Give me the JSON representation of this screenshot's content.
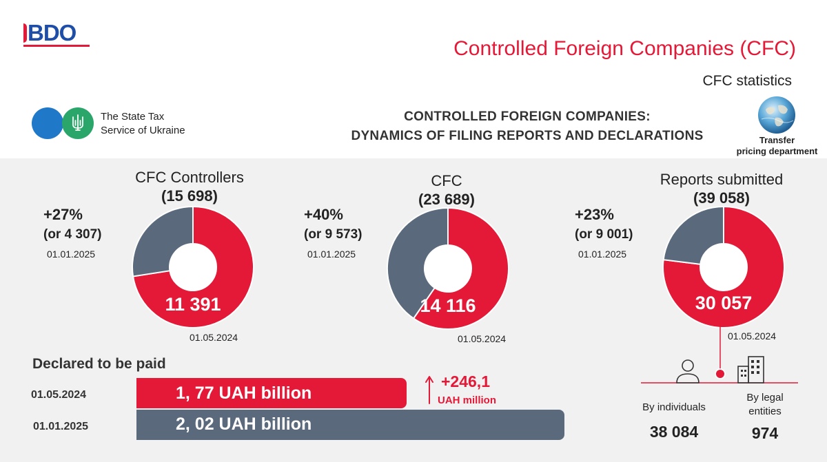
{
  "brand": {
    "logo_text": "BDO",
    "brand_red": "#e31937",
    "brand_blue": "#1e4ea8"
  },
  "header": {
    "title": "Controlled Foreign Companies (CFC)",
    "subtitle": "CFC statistics"
  },
  "agency": {
    "name_line1": "The State Tax",
    "name_line2": "Service of Ukraine",
    "icon": "trident-icon"
  },
  "section": {
    "title_line1": "CONTROLLED FOREIGN COMPANIES:",
    "title_line2": "DYNAMICS OF FILING REPORTS AND DECLARATIONS"
  },
  "department": {
    "line1": "Transfer",
    "line2": "pricing department",
    "icon": "globe-icon"
  },
  "charts": [
    {
      "title": "CFC Controllers",
      "total": "(15 698)",
      "growth_pct": "+27%",
      "growth_abs": "(or 4 307)",
      "growth_date": "01.01.2025",
      "base_value": "11 391",
      "base_date": "01.05.2024",
      "share_base": 0.7256,
      "share_growth": 0.2744,
      "colors": {
        "base": "#e31937",
        "growth": "#5a6a7c"
      }
    },
    {
      "title": "CFC",
      "total": "(23 689)",
      "growth_pct": "+40%",
      "growth_abs": "(or 9 573)",
      "growth_date": "01.01.2025",
      "base_value": "14 116",
      "base_date": "01.05.2024",
      "share_base": 0.5959,
      "share_growth": 0.4041,
      "colors": {
        "base": "#e31937",
        "growth": "#5a6a7c"
      }
    },
    {
      "title": "Reports submitted",
      "total": "(39 058)",
      "growth_pct": "+23%",
      "growth_abs": "(or 9 001)",
      "growth_date": "01.01.2025",
      "base_value": "30 057",
      "base_date": "01.05.2024",
      "share_base": 0.7696,
      "share_growth": 0.2304,
      "colors": {
        "base": "#e31937",
        "growth": "#5a6a7c"
      }
    }
  ],
  "declared": {
    "title": "Declared to be paid",
    "rows": [
      {
        "date": "01.05.2024",
        "label": "1, 77 UAH billion",
        "value": 1.77,
        "color": "#e31937"
      },
      {
        "date": "01.01.2025",
        "label": "2, 02 UAH billion",
        "value": 2.02,
        "color": "#5a6a7c"
      }
    ],
    "increase": "+246,1",
    "increase_unit": "UAH million"
  },
  "breakdown": {
    "individuals": {
      "label": "By individuals",
      "value": "38 084",
      "icon": "person-icon"
    },
    "legal": {
      "label_line1": "By legal",
      "label_line2": "entities",
      "value": "974",
      "icon": "buildings-icon"
    }
  }
}
